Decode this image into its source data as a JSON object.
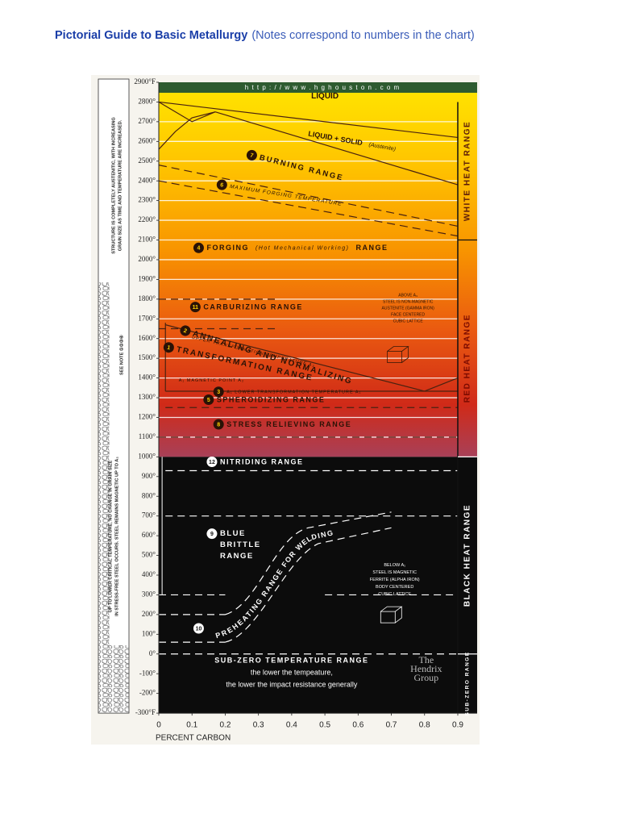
{
  "header": {
    "title": "Pictorial Guide to Basic Metallurgy",
    "subtitle": "(Notes correspond to numbers in the chart)"
  },
  "diagram": {
    "url": "h t t p : / / w w w . h g h o u s t o n . c o m",
    "y_axis_labels": [
      "2900°F",
      "2800°",
      "2700°",
      "2600°",
      "2500°",
      "2400°",
      "2300°",
      "2200°",
      "2100°",
      "2000°",
      "1900°",
      "1800°",
      "1700°",
      "1600°",
      "1500°",
      "1400°",
      "1300°",
      "1200°",
      "1100°",
      "1000°",
      "900°",
      "800°",
      "700°",
      "600°",
      "500°",
      "400°",
      "300°",
      "200°",
      "100°",
      "0°",
      "-100°",
      "-200°",
      "-300°F"
    ],
    "x_axis_labels": [
      "0",
      "0.1",
      "0.2",
      "0.3",
      "0.4",
      "0.5",
      "0.6",
      "0.7",
      "0.8",
      "0.9"
    ],
    "x_axis_title": "PERCENT CARBON",
    "side_ranges": [
      "WHITE HEAT RANGE",
      "RED HEAT RANGE",
      "BLACK HEAT RANGE",
      "SUB-ZERO RANGE"
    ],
    "left_notes": [
      "STRUCTURE IS COMPLETELY AUSTENITIC, WITH INCREASING",
      "GRAIN SIZE AS TIME AND TEMPERATURE ARE INCREASED.",
      "SEE NOTE ①②③④",
      "UP TO LOWER CRITICAL TEMPERATURE, NO CHANGE IN GRAIN SIZE",
      "IN STRESS-FREE STEEL OCCURS. STEEL REMAINS MAGNETIC UP TO A₂"
    ],
    "regions": [
      {
        "lines": [
          "LIQUID"
        ]
      },
      {
        "lines": [
          "LIQUID + SOLID",
          "(Austenite)"
        ]
      },
      {
        "number": "7",
        "lines": [
          "BURNING RANGE"
        ]
      },
      {
        "number": "6",
        "lines": [
          "MAXIMUM FORGING TEMPERATURE"
        ]
      },
      {
        "number": "4",
        "lines": [
          "FORGING",
          "(Hot Mechanical Working)",
          "RANGE"
        ]
      },
      {
        "number": "11",
        "lines": [
          "CARBURIZING RANGE"
        ]
      },
      {
        "number": "2",
        "lines": [
          "ANNEALING AND NORMALIZING"
        ]
      },
      {
        "lines": [
          "UPPER TRANSFORMATION TEMPERATURE A₃"
        ]
      },
      {
        "number": "1",
        "lines": [
          "TRANSFORMATION RANGE"
        ]
      },
      {
        "lines": [
          "A₁ MAGNETIC POINT A₂"
        ]
      },
      {
        "number": "3",
        "lines": [
          "A₁ LOWER TRANSFORMATION TEMPERATURE A₁"
        ]
      },
      {
        "number": "5",
        "lines": [
          "SPHEROIDIZING RANGE"
        ]
      },
      {
        "number": "8",
        "lines": [
          "STRESS RELIEVING RANGE"
        ]
      },
      {
        "number": "12",
        "lines": [
          "NITRIDING RANGE"
        ]
      },
      {
        "number": "9",
        "lines": [
          "BLUE",
          "BRITTLE",
          "RANGE"
        ]
      },
      {
        "number": "10",
        "lines": [
          "PREHEATING RANGE FOR WELDING"
        ]
      },
      {
        "lines": [
          "ABOVE A₃",
          "STEEL IS NON-MAGNETIC",
          "AUSTENITE (GAMMA IRON)",
          "FACE CENTERED",
          "CUBIC LATTICE"
        ]
      },
      {
        "lines": [
          "BELOW A₁",
          "STEEL IS MAGNETIC",
          "FERRITE (ALPHA IRON)",
          "BODY CENTERED",
          "CUBIC LATTICE"
        ]
      },
      {
        "lines": [
          "SUB-ZERO TEMPERATURE RANGE",
          "the lower the tempeature,",
          "the lower the impact resistance generally"
        ]
      },
      {
        "lines": [
          "The",
          "Hendrix",
          "Group"
        ]
      }
    ]
  }
}
